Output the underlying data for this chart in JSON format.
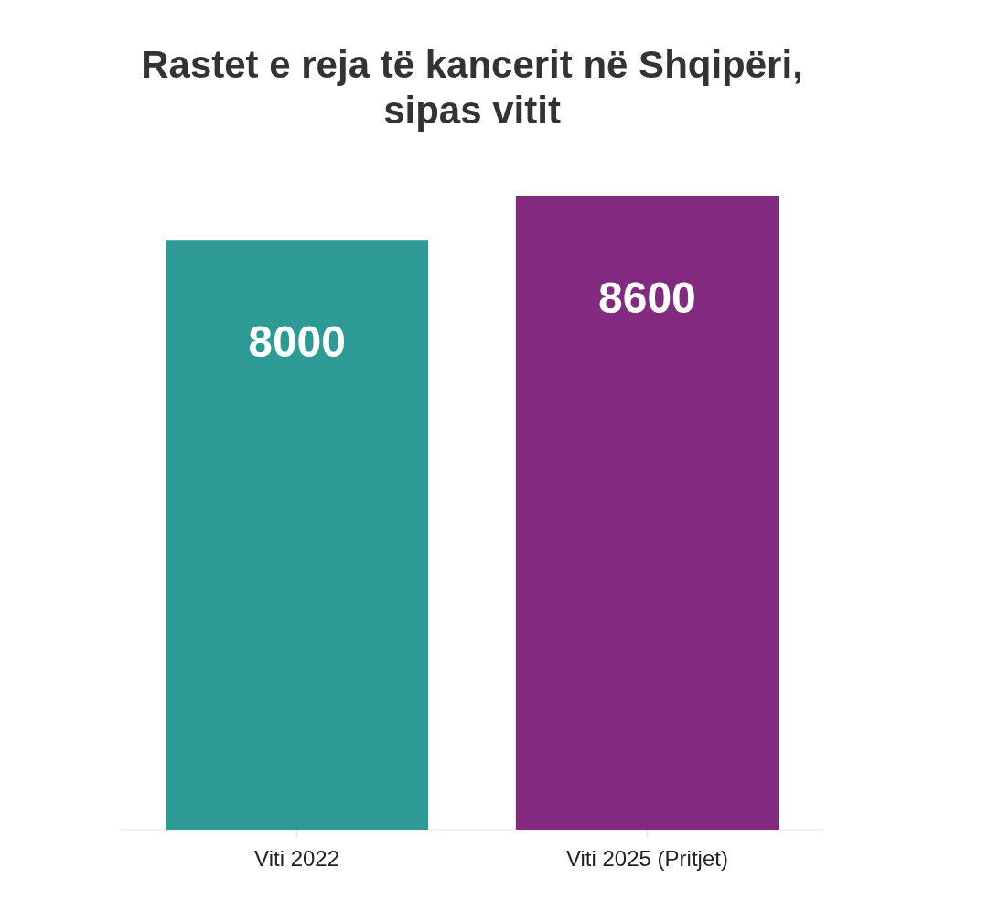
{
  "chart_data": {
    "type": "bar",
    "title": "Rastet e reja të kancerit në Shqipëri,\nsipas vitit",
    "categories": [
      "Viti 2022",
      "Viti 2025 (Pritjet)"
    ],
    "values": [
      8000,
      8600
    ],
    "colors": [
      "#2e9a95",
      "#812a80"
    ],
    "data_labels": true,
    "grid": false,
    "legend": false
  }
}
